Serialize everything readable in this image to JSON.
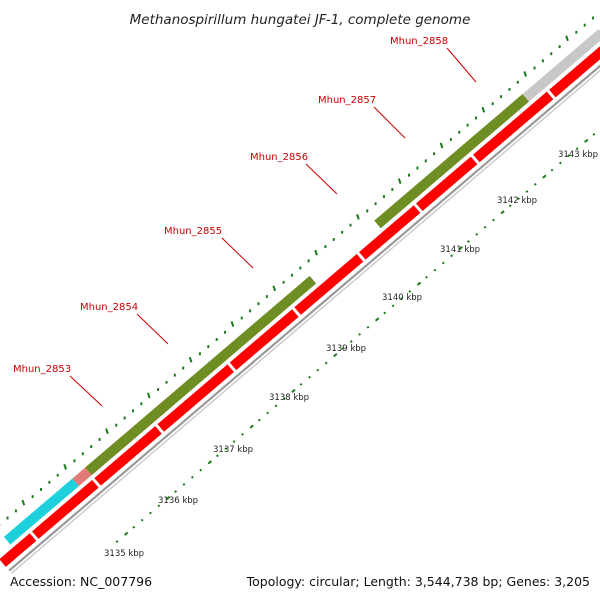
{
  "title": "Methanospirillum hungatei JF-1, complete genome",
  "footer": {
    "accession": "Accession: NC_007796",
    "summary": "Topology: circular; Length: 3,544,738 bp; Genes: 3,205"
  },
  "colors": {
    "cds": "#ff0000",
    "backbone": "#9a9a9a",
    "tick": "#1a7a1a",
    "label": "#cc0000",
    "olive": "#6e8e24",
    "salmon": "#e07b78",
    "cyan": "#1ed0dc",
    "grey": "#c8c8c8"
  },
  "gene_labels": [
    "Mhun_2853",
    "Mhun_2854",
    "Mhun_2855",
    "Mhun_2856",
    "Mhun_2857",
    "Mhun_2858"
  ],
  "kbp_labels": [
    "3135 kbp",
    "3136 kbp",
    "3137 kbp",
    "3138 kbp",
    "3139 kbp",
    "3140 kbp",
    "3141 kbp",
    "3142 kbp",
    "3143 kbp"
  ]
}
